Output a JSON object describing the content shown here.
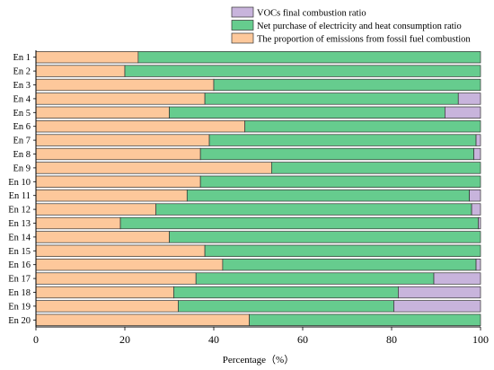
{
  "chart_data": {
    "type": "bar",
    "orientation": "horizontal",
    "stacked": true,
    "categories": [
      "En 1",
      "En 2",
      "En 3",
      "En 4",
      "En 5",
      "En 6",
      "En 7",
      "En 8",
      "En 9",
      "En 10",
      "En 11",
      "En 12",
      "En 13",
      "En 14",
      "En 15",
      "En 16",
      "En 17",
      "En 18",
      "En 19",
      "En 20"
    ],
    "series": [
      {
        "name": "The proportion of emissions from fossil fuel combustion",
        "color": "#fdc89b",
        "values": [
          23,
          20,
          40,
          38,
          30,
          47,
          39,
          37,
          53,
          37,
          34,
          27,
          19,
          30,
          38,
          42,
          36,
          31,
          32,
          48
        ]
      },
      {
        "name": "Net purchase of electricity and heat consumption ratio",
        "color": "#66cc8e",
        "values": [
          77,
          80,
          60,
          57,
          62,
          53,
          60,
          61.5,
          47,
          63,
          63.5,
          71,
          80.5,
          70,
          62,
          57,
          53.5,
          50.5,
          48.5,
          52
        ]
      },
      {
        "name": "VOCs final combustion ratio",
        "color": "#c8b4dc",
        "values": [
          0,
          0,
          0,
          5,
          8,
          0,
          1,
          1.5,
          0,
          0,
          2.5,
          2,
          0.5,
          0,
          0,
          1,
          10.5,
          18.5,
          19.5,
          0
        ]
      }
    ],
    "legend_order": [
      "VOCs final combustion ratio",
      "Net purchase of electricity and heat consumption ratio",
      "The proportion of emissions from fossil fuel combustion"
    ],
    "xlabel": "Percentage（%）",
    "ylabel": "",
    "xlim": [
      0,
      100
    ],
    "x_ticks": [
      "0",
      "20",
      "40",
      "60",
      "80",
      "100"
    ],
    "legend_position": "top-right",
    "grid": false
  }
}
